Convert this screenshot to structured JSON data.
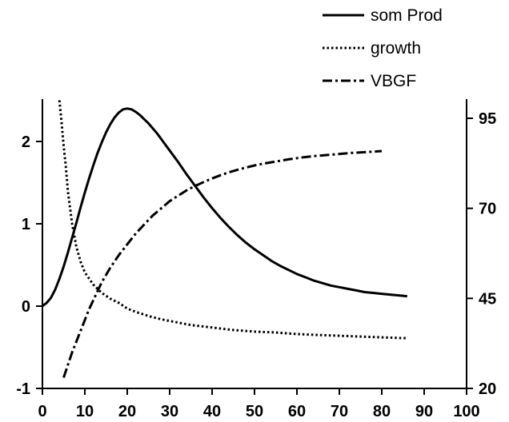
{
  "chart_data": {
    "type": "line",
    "title": "",
    "xlabel": "",
    "ylabel_left": "",
    "ylabel_right": "",
    "xlim": [
      0,
      100
    ],
    "ylim_left": [
      -1,
      2.5
    ],
    "ylim_right": [
      20,
      100
    ],
    "grid": false,
    "legend_position": "top-right",
    "x_ticks": [
      "0",
      "10",
      "20",
      "30",
      "40",
      "50",
      "60",
      "70",
      "80",
      "90",
      "100"
    ],
    "y_left_ticks": [
      "-1",
      "0",
      "1",
      "2"
    ],
    "y_right_ticks": [
      "20",
      "45",
      "70",
      "95"
    ],
    "series": [
      {
        "name": "som Prod",
        "axis": "left",
        "style": "solid",
        "x": [
          0,
          1,
          2,
          3,
          4,
          5,
          6,
          7,
          8,
          9,
          10,
          11,
          12,
          13,
          14,
          15,
          16,
          17,
          18,
          19,
          20,
          21,
          22,
          23,
          24,
          25,
          26,
          27,
          28,
          29,
          30,
          32,
          34,
          36,
          38,
          40,
          42,
          44,
          46,
          48,
          50,
          52,
          54,
          56,
          58,
          60,
          62,
          64,
          66,
          68,
          70,
          72,
          74,
          76,
          78,
          80,
          82,
          84,
          86
        ],
        "y": [
          0.0,
          0.04,
          0.1,
          0.2,
          0.33,
          0.48,
          0.65,
          0.83,
          1.01,
          1.2,
          1.38,
          1.55,
          1.71,
          1.86,
          1.99,
          2.11,
          2.21,
          2.29,
          2.35,
          2.39,
          2.4,
          2.39,
          2.36,
          2.32,
          2.27,
          2.22,
          2.16,
          2.1,
          2.03,
          1.96,
          1.89,
          1.75,
          1.6,
          1.46,
          1.32,
          1.19,
          1.07,
          0.96,
          0.86,
          0.77,
          0.69,
          0.62,
          0.55,
          0.49,
          0.44,
          0.39,
          0.35,
          0.31,
          0.28,
          0.25,
          0.23,
          0.21,
          0.19,
          0.17,
          0.16,
          0.15,
          0.14,
          0.13,
          0.12
        ]
      },
      {
        "name": "growth",
        "axis": "left",
        "style": "dotted",
        "x": [
          4,
          4.5,
          5,
          5.5,
          6,
          7,
          8,
          9,
          10,
          12,
          14,
          16,
          18,
          20,
          22,
          25,
          28,
          31,
          35,
          40,
          45,
          50,
          55,
          60,
          65,
          70,
          75,
          80,
          86
        ],
        "y": [
          2.5,
          2.25,
          1.95,
          1.7,
          1.4,
          1.0,
          0.72,
          0.54,
          0.41,
          0.26,
          0.16,
          0.09,
          0.04,
          -0.03,
          -0.07,
          -0.12,
          -0.16,
          -0.19,
          -0.23,
          -0.26,
          -0.29,
          -0.31,
          -0.32,
          -0.34,
          -0.35,
          -0.36,
          -0.37,
          -0.38,
          -0.39
        ]
      },
      {
        "name": "VBGF",
        "axis": "right",
        "style": "dashed",
        "x": [
          5,
          6,
          7,
          8,
          9,
          10,
          11,
          12,
          13,
          14,
          15,
          16,
          18,
          20,
          22,
          24,
          26,
          28,
          30,
          32,
          34,
          36,
          38,
          40,
          42,
          44,
          46,
          48,
          50,
          52,
          55,
          58,
          61,
          64,
          67,
          70,
          73,
          76,
          80
        ],
        "y": [
          23,
          26.5,
          30,
          33,
          36,
          39,
          42,
          44.5,
          47,
          49.5,
          51.5,
          53.5,
          57,
          60,
          63,
          65.5,
          68,
          70,
          72,
          73.5,
          75,
          76.2,
          77.3,
          78.3,
          79.2,
          80,
          80.7,
          81.3,
          81.9,
          82.4,
          83,
          83.6,
          84.1,
          84.5,
          84.8,
          85.1,
          85.4,
          85.6,
          85.9
        ]
      }
    ]
  }
}
